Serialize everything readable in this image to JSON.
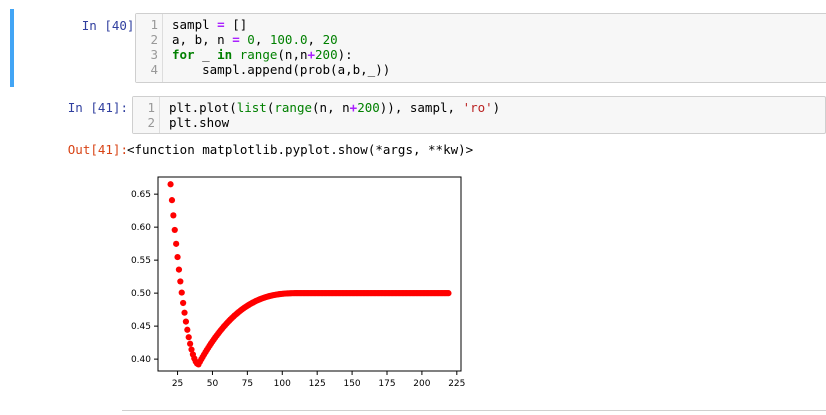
{
  "cells": [
    {
      "prompt": "In [40]:",
      "lines": [
        {
          "n": "1",
          "parts": [
            [
              "t",
              "sampl "
            ],
            [
              "op",
              "="
            ],
            [
              "t",
              " []"
            ]
          ]
        },
        {
          "n": "2",
          "parts": [
            [
              "t",
              "a, b, n "
            ],
            [
              "op",
              "="
            ],
            [
              "t",
              " "
            ],
            [
              "num",
              "0"
            ],
            [
              "t",
              ", "
            ],
            [
              "num",
              "100.0"
            ],
            [
              "t",
              ", "
            ],
            [
              "num",
              "20"
            ]
          ]
        },
        {
          "n": "3",
          "parts": [
            [
              "kw",
              "for"
            ],
            [
              "t",
              " _ "
            ],
            [
              "kw",
              "in"
            ],
            [
              "t",
              " "
            ],
            [
              "bi",
              "range"
            ],
            [
              "t",
              "(n,n"
            ],
            [
              "op",
              "+"
            ],
            [
              "num",
              "200"
            ],
            [
              "t",
              "):"
            ]
          ]
        },
        {
          "n": "4",
          "parts": [
            [
              "t",
              "    sampl.append(prob(a,b,_))"
            ]
          ]
        }
      ]
    },
    {
      "prompt": "In [41]:",
      "lines": [
        {
          "n": "1",
          "parts": [
            [
              "t",
              "plt.plot("
            ],
            [
              "bi",
              "list"
            ],
            [
              "t",
              "("
            ],
            [
              "bi",
              "range"
            ],
            [
              "t",
              "(n, n"
            ],
            [
              "op",
              "+"
            ],
            [
              "num",
              "200"
            ],
            [
              "t",
              ")), sampl, "
            ],
            [
              "str",
              "'ro'"
            ],
            [
              "t",
              ")"
            ]
          ]
        },
        {
          "n": "2",
          "parts": [
            [
              "t",
              "plt.show"
            ]
          ]
        }
      ]
    }
  ],
  "output": {
    "prompt": "Out[41]:",
    "text": "<function matplotlib.pyplot.show(*args, **kw)>"
  },
  "chart_data": {
    "type": "scatter",
    "marker_color": "#ff0000",
    "x_range": [
      20,
      219
    ],
    "xlim": [
      11,
      228
    ],
    "ylim": [
      0.382,
      0.676
    ],
    "x_ticks": [
      25,
      50,
      75,
      100,
      125,
      150,
      175,
      200,
      225
    ],
    "x_tick_labels": [
      "25",
      "50",
      "75",
      "100",
      "125",
      "150",
      "175",
      "200",
      "225"
    ],
    "y_ticks": [
      0.4,
      0.45,
      0.5,
      0.55,
      0.6,
      0.65
    ],
    "y_tick_labels": [
      "0.40",
      "0.45",
      "0.50",
      "0.55",
      "0.60",
      "0.65"
    ],
    "shape": {
      "start_value": 0.665,
      "minimum": {
        "x": 40,
        "y": 0.392
      },
      "plateau": 0.5,
      "plateau_from_x": 112
    }
  }
}
